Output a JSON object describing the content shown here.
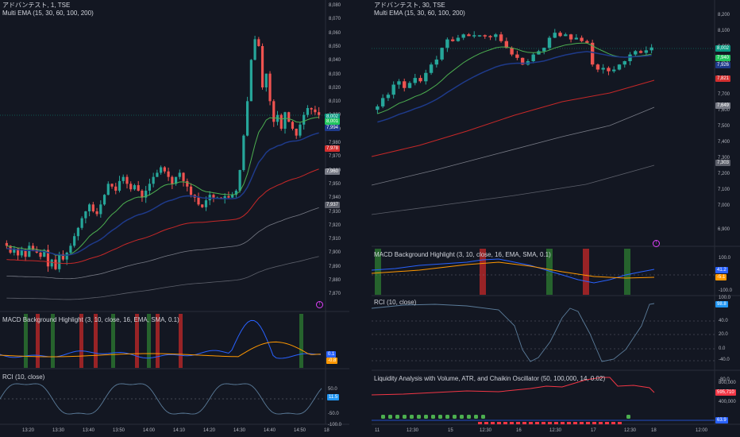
{
  "left": {
    "title": "アドバンテスト, 1, TSE",
    "indicator": "Multi EMA (15, 30, 60, 100, 200)",
    "price_ticks": [
      "8,080",
      "8,070",
      "8,060",
      "8,050",
      "8,040",
      "8,030",
      "8,020",
      "8,010",
      "8,000",
      "7,990",
      "7,980",
      "7,970",
      "7,960",
      "7,950",
      "7,940",
      "7,930",
      "7,920",
      "7,910",
      "7,900",
      "7,890",
      "7,880",
      "7,870"
    ],
    "price_tags": [
      {
        "text": "8,002",
        "color": "#089981"
      },
      {
        "text": "8,001",
        "color": "#22c55e"
      },
      {
        "text": "7,994",
        "color": "#1e3a8a"
      },
      {
        "text": "7,978",
        "color": "#d32f2f"
      },
      {
        "text": "7,960",
        "color": "#787b86"
      },
      {
        "text": "7,937",
        "color": "#5d606b"
      }
    ],
    "macd_title": "MACD Background Highlight (3, 10, close, 16, EMA, SMA, 0.1)",
    "macd_tags": [
      {
        "text": "0.1",
        "color": "#2962ff"
      },
      {
        "text": "-0.8",
        "color": "#ff9800"
      }
    ],
    "rci_title": "RCI (10, close)",
    "rci_ticks": [
      "50.0",
      "-50.0",
      "-100.0"
    ],
    "rci_tag": {
      "text": "11.5",
      "color": "#2196f3"
    },
    "time_ticks": [
      "13:20",
      "13:30",
      "13:40",
      "13:50",
      "14:00",
      "14:10",
      "14:20",
      "14:30",
      "14:40",
      "14:50",
      "18"
    ]
  },
  "right": {
    "title": "アドバンテスト, 30, TSE",
    "indicator": "Multi EMA (15, 30, 60, 100, 200)",
    "price_ticks": [
      "8,200",
      "8,100",
      "8,000",
      "7,900",
      "7,800",
      "7,700",
      "7,600",
      "7,500",
      "7,400",
      "7,300",
      "7,200",
      "7,100",
      "7,000",
      "6,900"
    ],
    "price_tags": [
      {
        "text": "8,002",
        "color": "#089981"
      },
      {
        "text": "7,940",
        "color": "#22c55e"
      },
      {
        "text": "7,926",
        "color": "#1e3a8a"
      },
      {
        "text": "7,821",
        "color": "#d32f2f"
      },
      {
        "text": "7,649",
        "color": "#787b86"
      },
      {
        "text": "7,303",
        "color": "#5d606b"
      }
    ],
    "macd_title": "MACD Background Highlight (3, 10, close, 16, EMA, SMA, 0.1)",
    "macd_ticks": [
      "100.0",
      "-100.0"
    ],
    "macd_tags": [
      {
        "text": "41.2",
        "color": "#2962ff"
      },
      {
        "text": "-5.1",
        "color": "#ff9800"
      }
    ],
    "rci_title": "RCI (10, close)",
    "rci_ticks": [
      "100.0",
      "40.0",
      "20.0",
      "0.0",
      "-40.0",
      "-80.0"
    ],
    "rci_tag": {
      "text": "98.8",
      "color": "#2196f3"
    },
    "liq_title": "Liquidity Analysis with Volume, ATR, and Chaikin Oscillator (50, 100,000, 14, 0.02)",
    "liq_ticks": [
      "800,000",
      "400,000"
    ],
    "liq_tags": [
      {
        "text": "595,710",
        "color": "#f23645"
      },
      {
        "text": "63.9",
        "color": "#2962ff"
      }
    ],
    "time_ticks": [
      "11",
      "12:30",
      "15",
      "12:30",
      "16",
      "12:30",
      "17",
      "12:30",
      "18",
      "12:00"
    ]
  }
}
